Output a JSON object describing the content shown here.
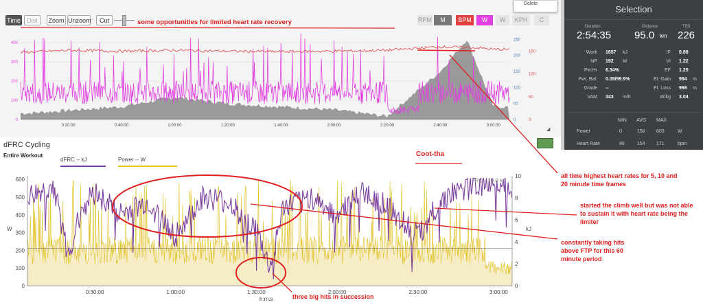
{
  "toolbar": {
    "time_label": "Time",
    "dist_label": "Dist",
    "zoom_label": "Zoom",
    "unzoom_label": "Unzoom",
    "cut_label": "Cut",
    "metric_buttons": [
      "RPM",
      "M",
      "BPM",
      "W",
      "W",
      "KPH",
      "C"
    ],
    "delete_label": "Delete"
  },
  "top_chart": {
    "x_ticks": [
      "0:20:00",
      "0:40:00",
      "1:00:00",
      "1:20:00",
      "1:40:00",
      "2:00:00",
      "2:20:00",
      "2:40:00",
      "3:00:00"
    ],
    "power_ticks": [
      "400",
      "300",
      "200",
      "100",
      "0"
    ],
    "elev_ticks": [
      "250",
      "200",
      "150",
      "100",
      "50",
      "0"
    ],
    "hr_ticks": [
      "150",
      "100",
      "50",
      "0"
    ]
  },
  "selection": {
    "title": "Selection",
    "duration_label": "Duration",
    "duration_value": "2:54:35",
    "distance_label": "Distance",
    "distance_value": "95.0",
    "distance_unit": "km",
    "tss_label": "TSS",
    "tss_value": "226",
    "rows_left": [
      {
        "label": "Work",
        "value": "1657",
        "unit": "kJ"
      },
      {
        "label": "NP",
        "value": "192",
        "unit": "W"
      },
      {
        "label": "Pw:Hr",
        "value": "6.34%",
        "unit": ""
      },
      {
        "label": "Pwr. Bal.",
        "value": "0.09/99.9%",
        "unit": ""
      },
      {
        "label": "Grade",
        "value": "--",
        "unit": ""
      },
      {
        "label": "VAM",
        "value": "343",
        "unit": "m/h"
      }
    ],
    "rows_right": [
      {
        "label": "IF",
        "value": "0.88",
        "unit": ""
      },
      {
        "label": "VI",
        "value": "1.22",
        "unit": ""
      },
      {
        "label": "EF",
        "value": "1.25",
        "unit": ""
      },
      {
        "label": "El. Gain",
        "value": "994",
        "unit": "m"
      },
      {
        "label": "El. Loss",
        "value": "966",
        "unit": "m"
      },
      {
        "label": "W/kg",
        "value": "3.04",
        "unit": ""
      }
    ],
    "table_headers": [
      "MIN",
      "AVG",
      "MAX"
    ],
    "table_rows": [
      {
        "label": "Power",
        "min": "0",
        "avg": "158",
        "max": "603",
        "unit": "W"
      },
      {
        "label": "Heart Rate",
        "min": "88",
        "avg": "154",
        "max": "171",
        "unit": "bpm"
      }
    ]
  },
  "dfrc": {
    "title": "dFRC Cycling",
    "subtitle": "Entire Workout",
    "legend_dfrc": "dFRC -- kJ",
    "legend_power": "Power -- W",
    "frc_label": "FRC - 10.0 kJ",
    "left_axis_title": "W",
    "right_axis_title": "kJ",
    "x_axis_title": "h:m:s",
    "y_left_ticks": [
      "600",
      "500",
      "400",
      "300",
      "200",
      "100",
      "0"
    ],
    "y_right_ticks": [
      "10",
      "8",
      "6",
      "4",
      "2",
      "0"
    ],
    "x_ticks": [
      "0:30:00",
      "1:00:00",
      "1:30:00",
      "2:00:00",
      "2:30:00",
      "3:00:00"
    ]
  },
  "annotations": {
    "top_note": "some opportunities for limited heart rate recovery",
    "center_title": "Coot-tha",
    "hr_note": "all time highest heart rates for 5, 10 and 20 minute time frames",
    "climb_note": "started the climb well but was not able to sustain it with heart rate being the limiter",
    "ftp_note": "constantly taking hits above FTP for this 60 minute period",
    "hits_note": "three big hits in succession"
  },
  "chart_data": [
    {
      "type": "line",
      "title": "",
      "xlabel": "",
      "x_unit": "h:m:s",
      "series": [
        {
          "name": "",
          "color": "#e05050",
          "axis": "right-red",
          "x": [
            "0:05:00",
            "0:20:00",
            "0:40:00",
            "1:00:00",
            "1:20:00",
            "1:40:00",
            "2:00:00",
            "2:20:00",
            "2:40:00",
            "2:55:00",
            "3:00:00"
          ],
          "y": [
            148,
            152,
            150,
            152,
            150,
            149,
            150,
            152,
            160,
            157,
            154
          ]
        },
        {
          "name": "",
          "color": "#e040e0",
          "axis": "left",
          "note": "power trace, highly variable",
          "x": [
            "0:20:00",
            "0:40:00",
            "1:00:00",
            "1:20:00",
            "1:40:00",
            "2:00:00",
            "2:20:00",
            "2:40:00",
            "3:00:00"
          ],
          "y": [
            190,
            170,
            180,
            175,
            160,
            165,
            150,
            170,
            160
          ]
        },
        {
          "name": "",
          "color": "#777777",
          "axis": "right-blue",
          "note": "elevation area",
          "x": [
            "0:05:00",
            "0:40:00",
            "1:00:00",
            "1:20:00",
            "2:00:00",
            "2:20:00",
            "2:40:00",
            "2:50:00",
            "3:00:00"
          ],
          "y": [
            20,
            40,
            70,
            50,
            30,
            10,
            150,
            250,
            40
          ]
        }
      ],
      "y_ranges": {
        "left": [
          0,
          450
        ],
        "right_blue": [
          0,
          270
        ],
        "right_red": [
          0,
          190
        ]
      },
      "grid": true
    },
    {
      "type": "line",
      "title": "dFRC Cycling",
      "xlabel": "h:m:s",
      "ylabel": "W",
      "y2label": "kJ",
      "ylim": [
        0,
        620
      ],
      "y2lim": [
        0,
        10
      ],
      "ftp_line_w": 210,
      "series": [
        {
          "name": "dFRC -- kJ",
          "color": "#7b3f9e",
          "axis": "right",
          "x": [
            "0:05:00",
            "0:15:00",
            "0:20:00",
            "0:25:00",
            "0:30:00",
            "0:40:00",
            "0:50:00",
            "1:00:00",
            "1:10:00",
            "1:20:00",
            "1:30:00",
            "1:35:00",
            "1:40:00",
            "1:50:00",
            "2:00:00",
            "2:10:00",
            "2:20:00",
            "2:30:00",
            "2:35:00",
            "2:40:00",
            "2:50:00",
            "3:00:00",
            "3:03:00"
          ],
          "y": [
            8.0,
            9.0,
            2.5,
            7.0,
            8.5,
            6.5,
            7.5,
            4.5,
            8.0,
            7.5,
            5.0,
            1.5,
            7.0,
            8.0,
            6.5,
            8.5,
            7.0,
            4.5,
            6.5,
            8.0,
            9.0,
            9.5,
            9.0
          ]
        },
        {
          "name": "Power -- W",
          "color": "#e0c020",
          "axis": "left",
          "x": [
            "0:30:00",
            "1:00:00",
            "1:30:00",
            "2:00:00",
            "2:30:00",
            "3:00:00"
          ],
          "y": [
            200,
            210,
            230,
            190,
            220,
            120
          ]
        }
      ],
      "grid": false
    }
  ]
}
